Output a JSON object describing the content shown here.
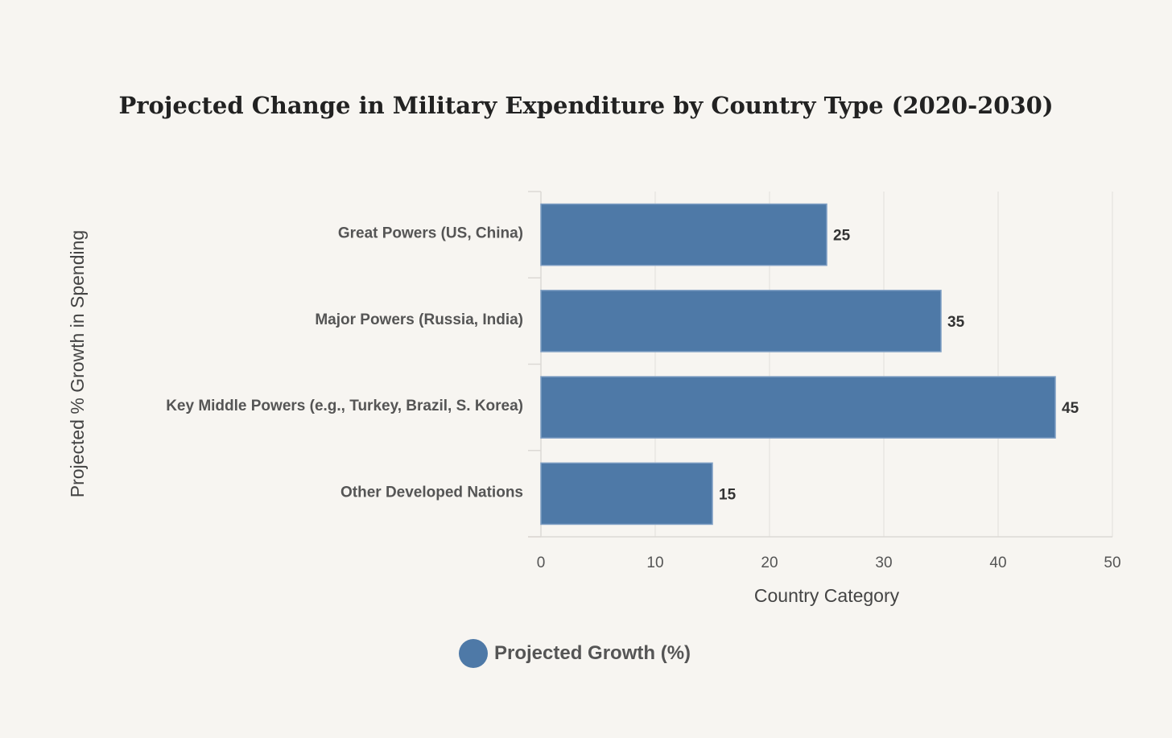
{
  "chart_data": {
    "type": "bar",
    "orientation": "horizontal",
    "title": "Projected Change in Military Expenditure by Country Type (2020-2030)",
    "xlabel": "Country Category",
    "ylabel": "Projected % Growth in Spending",
    "categories": [
      "Great Powers (US, China)",
      "Major Powers (Russia, India)",
      "Key Middle Powers (e.g., Turkey, Brazil, S. Korea)",
      "Other Developed Nations"
    ],
    "series": [
      {
        "name": "Projected Growth (%)",
        "values": [
          25,
          35,
          45,
          15
        ]
      }
    ],
    "xlim": [
      0,
      50
    ],
    "xticks": [
      "0",
      "10",
      "20",
      "30",
      "40",
      "50"
    ],
    "data_labels": [
      "25",
      "35",
      "45",
      "15"
    ],
    "grid": true,
    "legend": "bottom-center",
    "colors": {
      "bar": "#4e79a7",
      "background": "#f7f5f1"
    }
  }
}
